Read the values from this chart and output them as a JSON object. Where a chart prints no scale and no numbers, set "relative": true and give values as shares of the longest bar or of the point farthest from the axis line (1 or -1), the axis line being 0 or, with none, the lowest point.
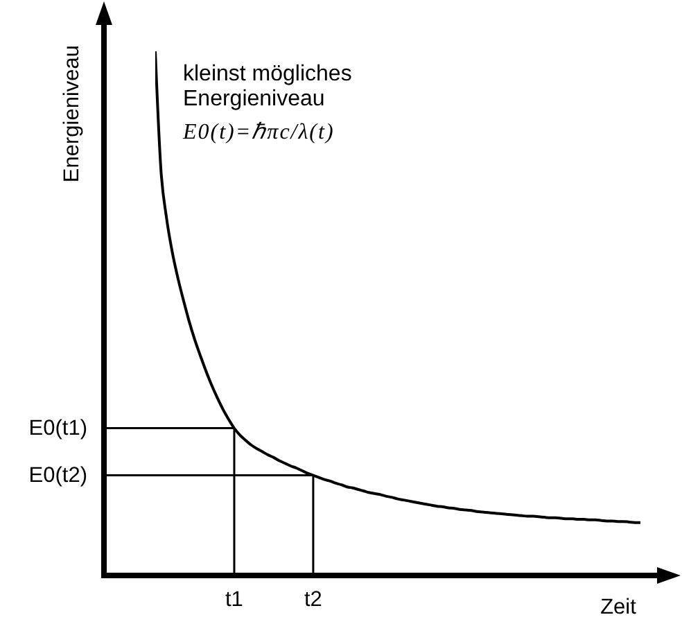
{
  "chart_data": {
    "type": "line",
    "relative": true,
    "xlabel": "Zeit",
    "ylabel": "Energieniveau",
    "marker": "none",
    "line_style": "solid",
    "categories": [
      null,
      null,
      null,
      null,
      null,
      null,
      null,
      null,
      null,
      null,
      null,
      null,
      null,
      null,
      "t1",
      null,
      null,
      null,
      null,
      null,
      null,
      null,
      null,
      null,
      null,
      null,
      null,
      null,
      "t2",
      null,
      null,
      null,
      null,
      null,
      null,
      null,
      null,
      null,
      null,
      null,
      null,
      null,
      null,
      null,
      null,
      null,
      null,
      null,
      null,
      null,
      null,
      null,
      null,
      null,
      null,
      null,
      null,
      null,
      null,
      null,
      null,
      null,
      null,
      null,
      null,
      null,
      null,
      null,
      null,
      null,
      null,
      null,
      null,
      null,
      null,
      null,
      null,
      null,
      null,
      null,
      null,
      null,
      null,
      null,
      null,
      null,
      null
    ],
    "series": [
      {
        "color": "#000000",
        "values": [
          1,
          0.775,
          0.682,
          0.618,
          0.568,
          0.525,
          0.485,
          0.45,
          0.419,
          0.39,
          0.363,
          0.339,
          0.317,
          0.298,
          0.281,
          0.268,
          0.258,
          0.249,
          0.242,
          0.236,
          0.23,
          0.225,
          0.219,
          0.214,
          0.209,
          0.205,
          0.2,
          0.195,
          0.191,
          0.187,
          0.183,
          0.18,
          0.176,
          0.173,
          0.169,
          0.167,
          0.164,
          0.161,
          0.158,
          0.156,
          0.154,
          0.151,
          0.149,
          0.146,
          0.144,
          0.142,
          0.14,
          0.138,
          0.136,
          0.134,
          0.132,
          0.131,
          0.129,
          0.128,
          0.126,
          0.125,
          0.124,
          0.122,
          0.121,
          0.12,
          0.119,
          0.118,
          0.117,
          0.116,
          0.115,
          0.114,
          0.113,
          0.113,
          0.112,
          0.111,
          0.11,
          0.11,
          0.109,
          0.108,
          0.108,
          0.107,
          0.107,
          0.106,
          0.106,
          0.105,
          0.104,
          0.104,
          0.103,
          0.103,
          0.102,
          0.101,
          0.101
        ]
      }
    ],
    "annotations": [
      "kleinst mögliches Energieniveau",
      "E0(t)=ℏπc/λ(t)",
      {
        "text": "E0(t1)",
        "x": "t1",
        "y": 0.281
      },
      {
        "text": "E0(t2)",
        "x": "t2",
        "y": 0.191
      }
    ]
  }
}
